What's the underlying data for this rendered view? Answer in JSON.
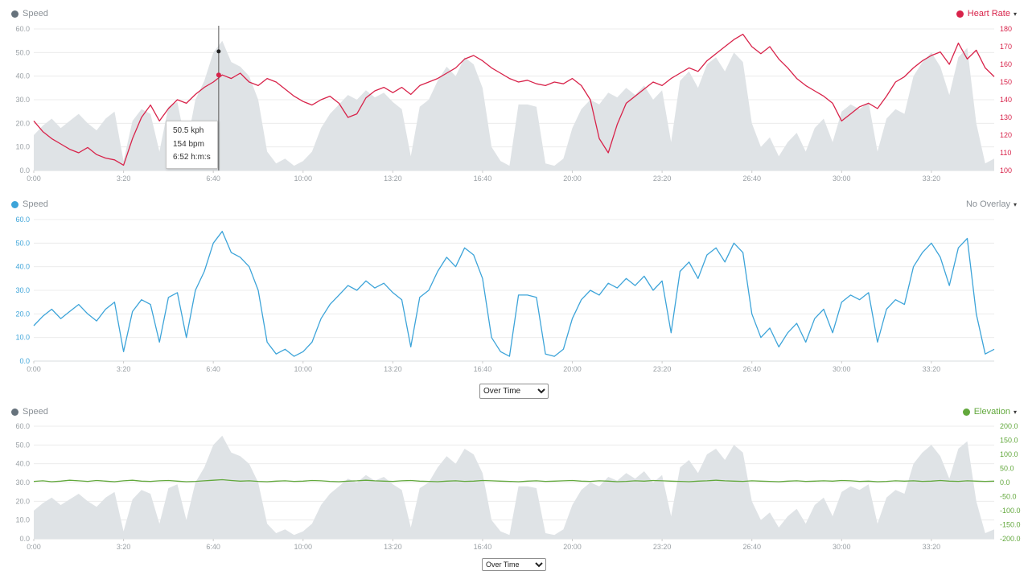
{
  "ui": {
    "caret": "▾",
    "chart1": {
      "legend_left": "Speed",
      "legend_right": "Heart Rate"
    },
    "chart2": {
      "legend_left": "Speed",
      "legend_right": "No Overlay"
    },
    "chart3": {
      "legend_left": "Speed",
      "legend_right": "Elevation"
    },
    "tooltip": {
      "speed": "50.5 kph",
      "heart_rate": "154 bpm",
      "time": "6:52 h:m:s"
    },
    "selects": {
      "chart2_value": "Over Time",
      "chart3_value": "Over Time"
    }
  },
  "colors": {
    "speed_area": "#dfe3e6",
    "speed_dot": "#66727c",
    "speed_line": "#3da4d9",
    "heart_rate": "#d8234a",
    "elevation": "#62a83c",
    "axis_text": "#9aa0a5",
    "grid": "#ececec",
    "baseline": "#d8dcdf",
    "crosshair": "#555555",
    "legend_text": "#8a9096"
  },
  "chart_data": {
    "type": "line",
    "x_step_seconds": 20,
    "x_tick_interval_seconds": 200,
    "x_tick_labels": [
      "0:00",
      "3:20",
      "6:40",
      "10:00",
      "13:20",
      "16:40",
      "20:00",
      "23:20",
      "26:40",
      "30:00",
      "33:20"
    ],
    "series": [
      {
        "name": "Speed",
        "unit": "kph",
        "values": [
          15,
          19,
          22,
          18,
          21,
          24,
          20,
          17,
          22,
          25,
          4,
          21,
          26,
          24,
          8,
          27,
          29,
          10,
          30,
          38,
          50,
          55,
          46,
          44,
          40,
          30,
          8,
          3,
          5,
          2,
          4,
          8,
          18,
          24,
          28,
          32,
          30,
          34,
          31,
          33,
          29,
          26,
          6,
          27,
          30,
          38,
          44,
          40,
          48,
          45,
          35,
          10,
          4,
          2,
          28,
          28,
          27,
          3,
          2,
          5,
          18,
          26,
          30,
          28,
          33,
          31,
          35,
          32,
          36,
          30,
          34,
          12,
          38,
          42,
          35,
          45,
          48,
          42,
          50,
          46,
          20,
          10,
          14,
          6,
          12,
          16,
          8,
          18,
          22,
          12,
          25,
          28,
          26,
          29,
          8,
          22,
          26,
          24,
          40,
          46,
          50,
          44,
          32,
          48,
          52,
          20,
          3,
          5
        ]
      },
      {
        "name": "Heart Rate",
        "unit": "bpm",
        "values": [
          128,
          122,
          118,
          115,
          112,
          110,
          113,
          109,
          107,
          106,
          103,
          118,
          130,
          137,
          128,
          135,
          140,
          138,
          143,
          147,
          150,
          154,
          152,
          155,
          150,
          148,
          152,
          150,
          146,
          142,
          139,
          137,
          140,
          142,
          138,
          130,
          132,
          141,
          145,
          147,
          144,
          147,
          143,
          148,
          150,
          152,
          155,
          158,
          163,
          165,
          162,
          158,
          155,
          152,
          150,
          151,
          149,
          148,
          150,
          149,
          152,
          148,
          140,
          118,
          110,
          126,
          138,
          142,
          146,
          150,
          148,
          152,
          155,
          158,
          156,
          162,
          166,
          170,
          174,
          177,
          170,
          166,
          170,
          163,
          158,
          152,
          148,
          145,
          142,
          138,
          128,
          132,
          136,
          138,
          135,
          142,
          150,
          153,
          158,
          162,
          165,
          167,
          160,
          172,
          163,
          168,
          158,
          153
        ]
      },
      {
        "name": "Elevation",
        "unit": "m",
        "values": [
          4,
          6,
          3,
          5,
          8,
          6,
          4,
          7,
          5,
          3,
          6,
          8,
          5,
          4,
          6,
          7,
          5,
          3,
          4,
          6,
          8,
          10,
          7,
          5,
          6,
          4,
          3,
          5,
          6,
          4,
          5,
          7,
          6,
          4,
          3,
          5,
          6,
          8,
          6,
          5,
          4,
          6,
          7,
          5,
          4,
          3,
          5,
          6,
          4,
          5,
          7,
          6,
          5,
          4,
          3,
          5,
          6,
          4,
          5,
          6,
          7,
          5,
          4,
          6,
          5,
          3,
          4,
          6,
          5,
          7,
          6,
          5,
          4,
          3,
          5,
          6,
          8,
          6,
          5,
          4,
          6,
          5,
          4,
          3,
          5,
          6,
          4,
          5,
          6,
          5,
          7,
          6,
          4,
          5,
          3,
          4,
          6,
          5,
          6,
          4,
          5,
          7,
          5,
          4,
          6,
          5,
          4,
          5
        ]
      }
    ],
    "charts": [
      {
        "title": "Speed with Heart Rate overlay",
        "primary": "Speed",
        "overlay": "Heart Rate",
        "left_ticks": [
          "0.0",
          "10.0",
          "20.0",
          "30.0",
          "40.0",
          "50.0",
          "60.0"
        ],
        "right_ticks": [
          "100",
          "110",
          "120",
          "130",
          "140",
          "150",
          "160",
          "170",
          "180"
        ],
        "crosshair": {
          "seconds": 412,
          "speed_kph": 50.5,
          "heart_rate_bpm": 154,
          "time_label": "6:52 h:m:s"
        }
      },
      {
        "title": "Speed (no overlay)",
        "primary": "Speed",
        "overlay": null,
        "left_ticks": [
          "0.0",
          "10.0",
          "20.0",
          "30.0",
          "40.0",
          "50.0",
          "60.0"
        ]
      },
      {
        "title": "Speed with Elevation overlay",
        "primary": "Speed",
        "overlay": "Elevation",
        "left_ticks": [
          "0.0",
          "10.0",
          "20.0",
          "30.0",
          "40.0",
          "50.0",
          "60.0"
        ],
        "right_ticks": [
          "-200.0",
          "-150.0",
          "-100.0",
          "-50.0",
          "0.0",
          "50.0",
          "100.0",
          "150.0",
          "200.0"
        ]
      }
    ]
  }
}
